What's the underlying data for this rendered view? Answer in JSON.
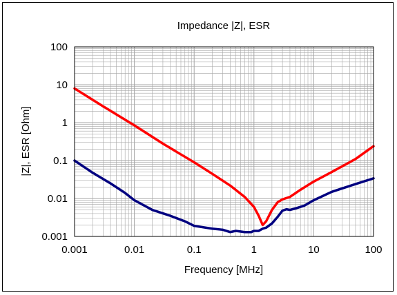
{
  "chart_data": {
    "type": "line",
    "title": "Impedance |Z|,  ESR",
    "xlabel": "Frequency [MHz]",
    "ylabel": "|Z|, ESR [Ohm]",
    "x_scale": "log",
    "y_scale": "log",
    "xlim": [
      0.001,
      100
    ],
    "ylim": [
      0.001,
      100
    ],
    "grid": true,
    "x_ticks": [
      "0.001",
      "0.01",
      "0.1",
      "1",
      "10",
      "100"
    ],
    "y_ticks": [
      "0.001",
      "0.01",
      "0.1",
      "1",
      "10",
      "100"
    ],
    "series": [
      {
        "color": "#ff0000",
        "x": [
          0.001,
          0.003,
          0.01,
          0.03,
          0.1,
          0.2,
          0.4,
          0.7,
          1.0,
          1.2,
          1.4,
          1.6,
          2.0,
          2.5,
          3.0,
          4.0,
          6.0,
          10,
          20,
          50,
          100
        ],
        "y": [
          8.0,
          2.7,
          0.85,
          0.28,
          0.09,
          0.045,
          0.022,
          0.011,
          0.006,
          0.0035,
          0.002,
          0.0025,
          0.005,
          0.008,
          0.0095,
          0.011,
          0.017,
          0.028,
          0.05,
          0.11,
          0.24
        ]
      },
      {
        "color": "#000080",
        "x": [
          0.001,
          0.002,
          0.004,
          0.007,
          0.01,
          0.02,
          0.04,
          0.07,
          0.1,
          0.2,
          0.3,
          0.4,
          0.5,
          0.7,
          0.9,
          1.0,
          1.2,
          1.4,
          1.6,
          2.0,
          2.5,
          3.0,
          3.5,
          4.0,
          5.0,
          7.0,
          10,
          20,
          50,
          100
        ],
        "y": [
          0.1,
          0.048,
          0.025,
          0.014,
          0.009,
          0.005,
          0.0035,
          0.0025,
          0.0019,
          0.0016,
          0.0015,
          0.0013,
          0.0014,
          0.0013,
          0.0013,
          0.0014,
          0.0014,
          0.0016,
          0.0017,
          0.0022,
          0.0033,
          0.0048,
          0.0052,
          0.005,
          0.0055,
          0.0065,
          0.009,
          0.015,
          0.024,
          0.034
        ]
      }
    ]
  }
}
